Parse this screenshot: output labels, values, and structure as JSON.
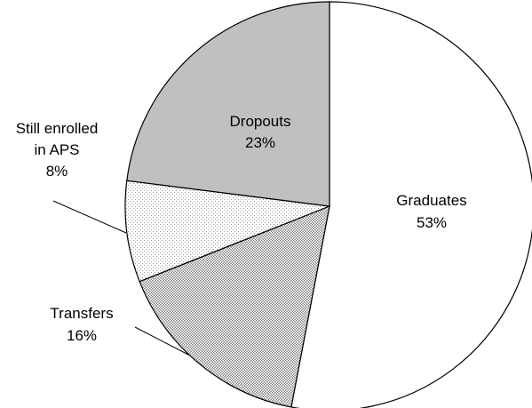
{
  "chart_data": {
    "type": "pie",
    "title": "",
    "slices": [
      {
        "label": "Graduates",
        "value": 53,
        "display": "53%",
        "pattern": "white"
      },
      {
        "label": "Transfers",
        "value": 16,
        "display": "16%",
        "pattern": "dense-dots"
      },
      {
        "label": "Still enrolled in APS",
        "label_lines": [
          "Still enrolled",
          "in APS"
        ],
        "value": 8,
        "display": "8%",
        "pattern": "light-dots"
      },
      {
        "label": "Dropouts",
        "value": 23,
        "display": "23%",
        "pattern": "gray"
      }
    ],
    "start_angle": "12 o'clock",
    "direction": "clockwise",
    "colors": {
      "white": "#ffffff",
      "gray": "#c0c0c0",
      "dense_dots": "#9a9a9a",
      "light_dots": "#bdbdbd",
      "stroke": "#000000"
    }
  }
}
